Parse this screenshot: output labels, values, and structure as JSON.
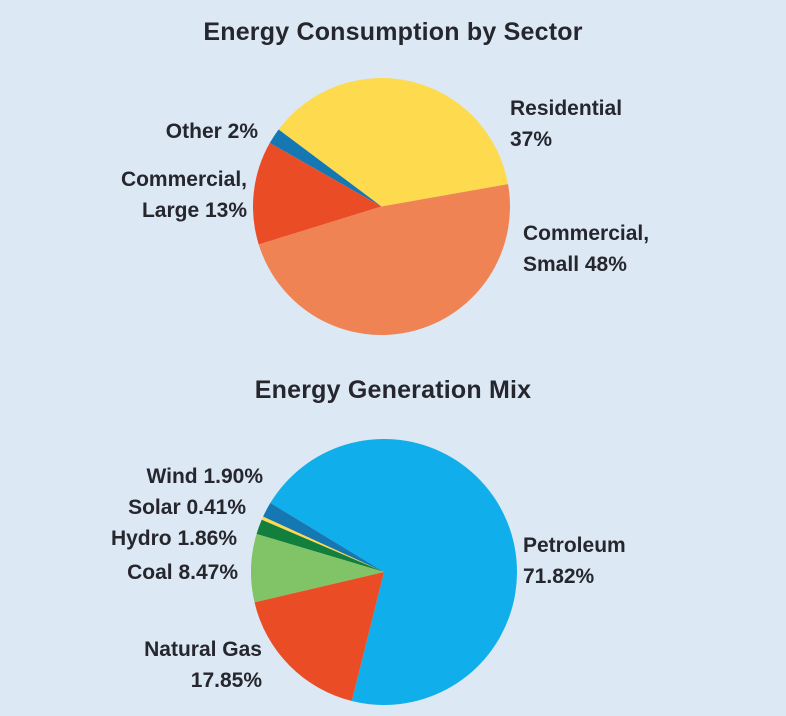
{
  "page": {
    "background_color": "#dce8f3",
    "text_color": "#26262e"
  },
  "chart_data": [
    {
      "type": "pie",
      "title": "Energy Consumption by Sector",
      "unit": "%",
      "start_angle_deg": 10,
      "direction": "ccw",
      "legend_position": "none",
      "slices": [
        {
          "label": "Residential",
          "value": 37,
          "color": "#fdda4e",
          "label_lines": [
            "Residential",
            "37%"
          ]
        },
        {
          "label": "Other",
          "value": 2,
          "color": "#1578b3",
          "label_lines": [
            "Other 2%"
          ]
        },
        {
          "label": "Commercial, Large",
          "value": 13,
          "color": "#ea4d25",
          "label_lines": [
            "Commercial,",
            "Large 13%"
          ]
        },
        {
          "label": "Commercial, Small",
          "value": 48,
          "color": "#ef8354",
          "label_lines": [
            "Commercial,",
            "Small 48%"
          ]
        }
      ]
    },
    {
      "type": "pie",
      "title": "Energy Generation Mix",
      "unit": "%",
      "start_angle_deg": 256,
      "direction": "ccw",
      "legend_position": "none",
      "slices": [
        {
          "label": "Petroleum",
          "value": 71.82,
          "color": "#10aeea",
          "label_lines": [
            "Petroleum",
            "71.82%"
          ]
        },
        {
          "label": "Wind",
          "value": 1.9,
          "color": "#1578b3",
          "label_lines": [
            "Wind 1.90%"
          ]
        },
        {
          "label": "Solar",
          "value": 0.41,
          "color": "#fdda4e",
          "label_lines": [
            "Solar 0.41%"
          ]
        },
        {
          "label": "Hydro",
          "value": 1.86,
          "color": "#127f3d",
          "label_lines": [
            "Hydro 1.86%"
          ]
        },
        {
          "label": "Coal",
          "value": 8.47,
          "color": "#81c468",
          "label_lines": [
            "Coal 8.47%"
          ]
        },
        {
          "label": "Natural Gas",
          "value": 17.85,
          "color": "#ea4d25",
          "label_lines": [
            "Natural Gas",
            "17.85%"
          ]
        }
      ]
    }
  ]
}
